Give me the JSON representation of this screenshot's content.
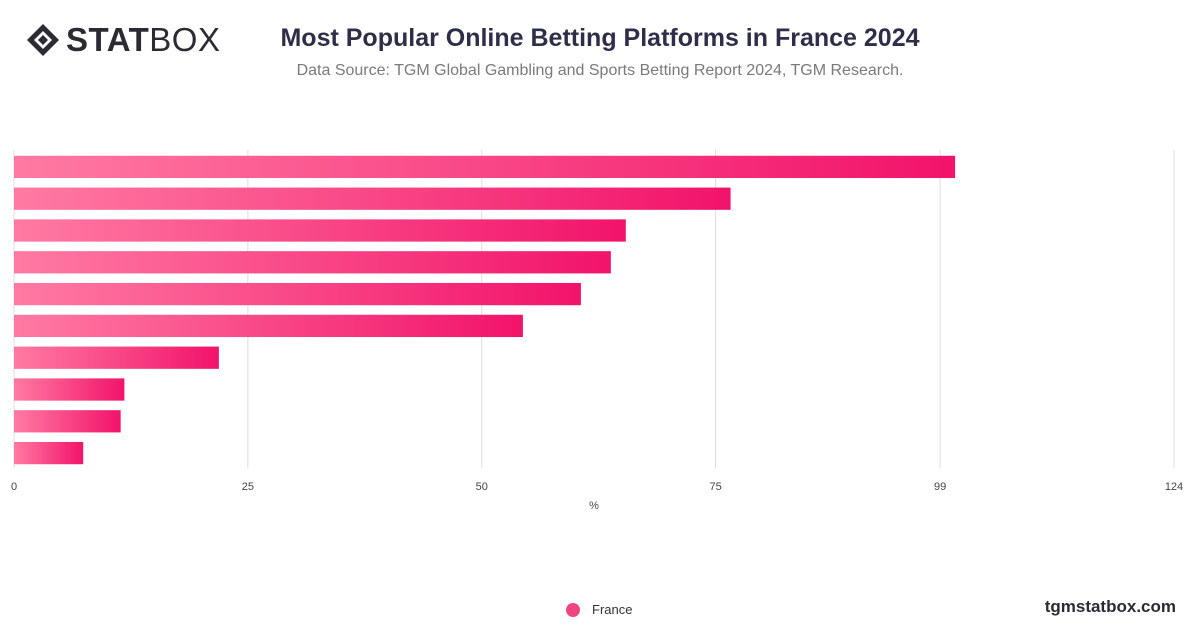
{
  "brand": {
    "logo_bold": "STAT",
    "logo_light": "BOX",
    "icon": "statbox-diamond-icon"
  },
  "header": {
    "title": "Most Popular Online Betting Platforms in France 2024",
    "subtitle": "Data Source: TGM Global Gambling and Sports Betting Report 2024, TGM Research."
  },
  "footer": {
    "site": "tgmstatbox.com"
  },
  "chart_data": {
    "type": "bar",
    "orientation": "horizontal",
    "categories": [
      "",
      "",
      "",
      "",
      "",
      "",
      "",
      "",
      "",
      ""
    ],
    "series": [
      {
        "name": "France",
        "values": [
          100.6,
          76.6,
          65.4,
          63.8,
          60.6,
          54.4,
          21.9,
          11.8,
          11.4,
          7.4
        ]
      }
    ],
    "x_ticks": [
      0,
      25,
      50,
      75,
      99,
      124
    ],
    "xlabel": "%",
    "xlim": [
      0,
      124
    ],
    "grid": true,
    "legend": "bottom-center",
    "colors": {
      "bar_start": "#ff7aa3",
      "bar_end": "#f2136a",
      "grid": "#dddddd",
      "legend_dot": "#f0457f"
    }
  }
}
